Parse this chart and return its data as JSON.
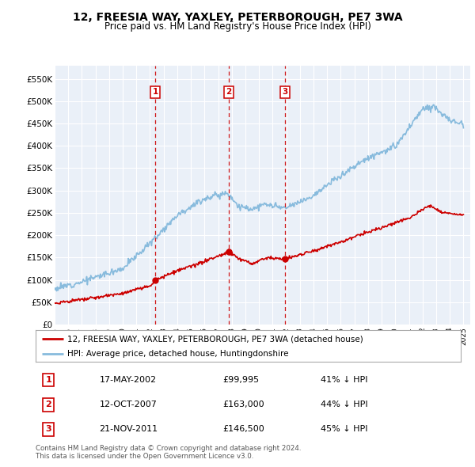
{
  "title": "12, FREESIA WAY, YAXLEY, PETERBOROUGH, PE7 3WA",
  "subtitle": "Price paid vs. HM Land Registry's House Price Index (HPI)",
  "ylabel_ticks": [
    "£0",
    "£50K",
    "£100K",
    "£150K",
    "£200K",
    "£250K",
    "£300K",
    "£350K",
    "£400K",
    "£450K",
    "£500K",
    "£550K"
  ],
  "ytick_values": [
    0,
    50000,
    100000,
    150000,
    200000,
    250000,
    300000,
    350000,
    400000,
    450000,
    500000,
    550000
  ],
  "ylim": [
    0,
    580000
  ],
  "background_color": "#ffffff",
  "plot_bg_color": "#eaf0f8",
  "grid_color": "#ffffff",
  "red_color": "#cc0000",
  "blue_color": "#88bbdd",
  "transaction_labels": [
    "1",
    "2",
    "3"
  ],
  "transaction_prices": [
    99995,
    163000,
    146500
  ],
  "legend_entries": [
    "12, FREESIA WAY, YAXLEY, PETERBOROUGH, PE7 3WA (detached house)",
    "HPI: Average price, detached house, Huntingdonshire"
  ],
  "table_data": [
    [
      "1",
      "17-MAY-2002",
      "£99,995",
      "41% ↓ HPI"
    ],
    [
      "2",
      "12-OCT-2007",
      "£163,000",
      "44% ↓ HPI"
    ],
    [
      "3",
      "21-NOV-2011",
      "£146,500",
      "45% ↓ HPI"
    ]
  ],
  "footer_text": "Contains HM Land Registry data © Crown copyright and database right 2024.\nThis data is licensed under the Open Government Licence v3.0."
}
